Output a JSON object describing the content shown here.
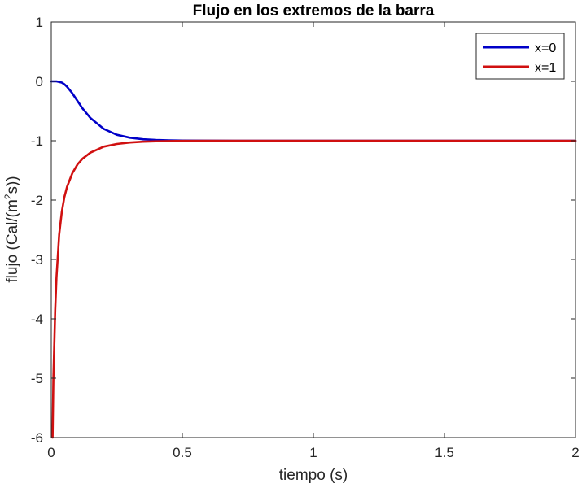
{
  "chart_data": {
    "type": "line",
    "title": "Flujo en los extremos de la barra",
    "xlabel": "tiempo (s)",
    "ylabel": {
      "prefix": "flujo (Cal/(m",
      "superscript": "2",
      "suffix": "s))"
    },
    "xlim": [
      0,
      2
    ],
    "ylim": [
      -6,
      1
    ],
    "xticks": [
      0,
      0.5,
      1,
      1.5,
      2
    ],
    "xtick_labels": [
      "0",
      "0.5",
      "1",
      "1.5",
      "2"
    ],
    "yticks": [
      1,
      0,
      -1,
      -2,
      -3,
      -4,
      -5,
      -6
    ],
    "ytick_labels": [
      "1",
      "0",
      "-1",
      "-2",
      "-3",
      "-4",
      "-5",
      "-6"
    ],
    "grid": false,
    "legend_position": "top-right",
    "series": [
      {
        "name": "x=0",
        "color": "#0000c8",
        "x": [
          0,
          0.01,
          0.02,
          0.03,
          0.04,
          0.05,
          0.06,
          0.08,
          0.1,
          0.12,
          0.15,
          0.2,
          0.25,
          0.3,
          0.35,
          0.4,
          0.45,
          0.5,
          0.6,
          0.7,
          0.8,
          1.0,
          1.5,
          2.0
        ],
        "y": [
          0,
          0,
          0,
          -0.01,
          -0.02,
          -0.05,
          -0.09,
          -0.2,
          -0.33,
          -0.46,
          -0.62,
          -0.8,
          -0.9,
          -0.95,
          -0.975,
          -0.988,
          -0.994,
          -0.997,
          -0.999,
          -1,
          -1,
          -1,
          -1,
          -1
        ]
      },
      {
        "name": "x=1",
        "color": "#d01010",
        "x": [
          0.005,
          0.008,
          0.01,
          0.015,
          0.02,
          0.03,
          0.04,
          0.05,
          0.06,
          0.08,
          0.1,
          0.12,
          0.15,
          0.2,
          0.25,
          0.3,
          0.35,
          0.4,
          0.5,
          0.6,
          0.7,
          1.0,
          1.5,
          2.0
        ],
        "y": [
          -6,
          -5,
          -4.7,
          -3.85,
          -3.3,
          -2.58,
          -2.2,
          -1.95,
          -1.78,
          -1.55,
          -1.4,
          -1.3,
          -1.2,
          -1.1,
          -1.055,
          -1.03,
          -1.016,
          -1.009,
          -1.003,
          -1.001,
          -1,
          -1,
          -1,
          -1
        ]
      }
    ]
  }
}
